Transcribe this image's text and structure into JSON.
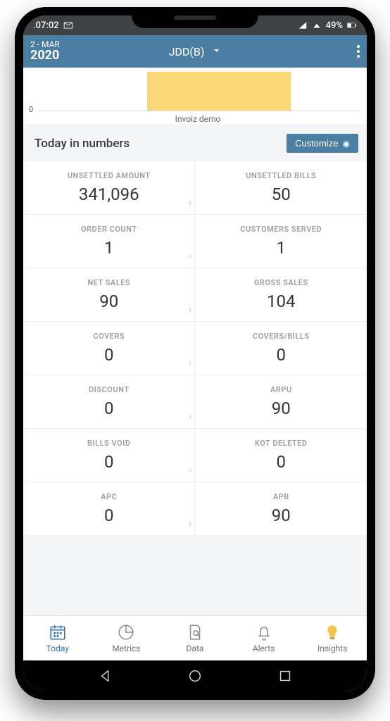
{
  "status": {
    "time": ".07:02",
    "battery_text": "49%"
  },
  "appbar": {
    "date_line": "2 - MAR",
    "year": "2020",
    "title": "JDD(B)"
  },
  "chart": {
    "type": "bar",
    "zero_label": "0",
    "xlabel": "Invoiz demo",
    "bar_color": "#fbd776",
    "background": "#ffffff"
  },
  "section": {
    "title": "Today in numbers",
    "customize_label": "Customize"
  },
  "metrics": [
    {
      "left_label": "UNSETTLED AMOUNT",
      "left_value": "341,096",
      "right_label": "UNSETTLED BILLS",
      "right_value": "50"
    },
    {
      "left_label": "ORDER COUNT",
      "left_value": "1",
      "right_label": "CUSTOMERS SERVED",
      "right_value": "1"
    },
    {
      "left_label": "NET SALES",
      "left_value": "90",
      "right_label": "GROSS SALES",
      "right_value": "104"
    },
    {
      "left_label": "COVERS",
      "left_value": "0",
      "right_label": "COVERS/BILLS",
      "right_value": "0"
    },
    {
      "left_label": "DISCOUNT",
      "left_value": "0",
      "right_label": "ARPU",
      "right_value": "90"
    },
    {
      "left_label": "BILLS VOID",
      "left_value": "0",
      "right_label": "KOT DELETED",
      "right_value": "0"
    },
    {
      "left_label": "APC",
      "left_value": "0",
      "right_label": "APB",
      "right_value": "90"
    }
  ],
  "tabs": {
    "today": "Today",
    "metrics": "Metrics",
    "data": "Data",
    "alerts": "Alerts",
    "insights": "Insights"
  },
  "colors": {
    "appbar": "#4a7ea2",
    "accent": "#2f6fb3",
    "label": "#9e9e9e",
    "value": "#353535"
  }
}
